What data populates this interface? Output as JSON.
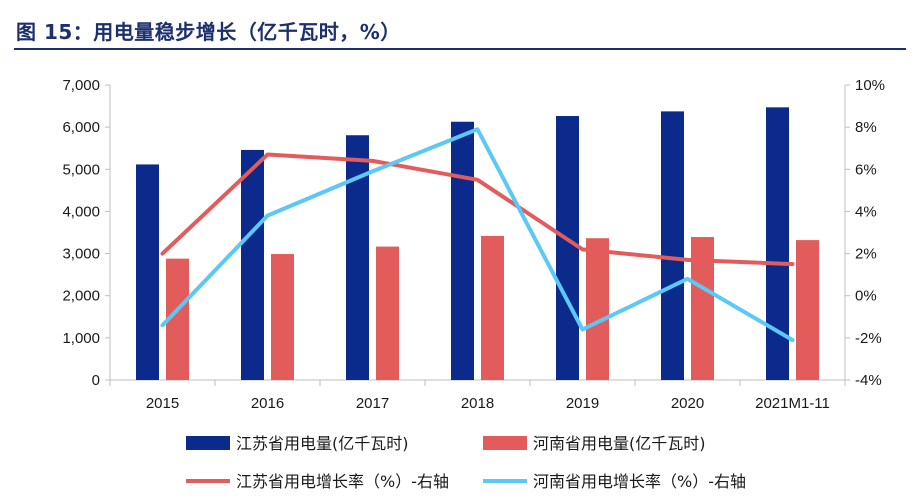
{
  "title": "图 15：用电量稳步增长（亿千瓦时，%）",
  "chart_data": {
    "type": "bar",
    "categories": [
      "2015",
      "2016",
      "2017",
      "2018",
      "2019",
      "2020",
      "2021M1-11"
    ],
    "ylim": [
      0,
      7000
    ],
    "y_ticks": [
      "0",
      "1,000",
      "2,000",
      "3,000",
      "4,000",
      "5,000",
      "6,000",
      "7,000"
    ],
    "y2lim": [
      -4,
      10
    ],
    "y2_ticks": [
      "-4%",
      "-2%",
      "0%",
      "2%",
      "4%",
      "6%",
      "8%",
      "10%"
    ],
    "series": [
      {
        "name": "江苏省用电量(亿千瓦时)",
        "kind": "bar",
        "axis": "left",
        "color": "#0b2a8c",
        "values": [
          5115,
          5459,
          5808,
          6128,
          6264,
          6374,
          6470
        ]
      },
      {
        "name": "河南省用电量(亿千瓦时)",
        "kind": "bar",
        "axis": "left",
        "color": "#e35c5c",
        "values": [
          2880,
          2989,
          3166,
          3418,
          3364,
          3392,
          3320
        ]
      },
      {
        "name": "江苏省用电增长率（%）-右轴",
        "kind": "line",
        "axis": "right",
        "color": "#e35c5c",
        "values": [
          2.0,
          6.7,
          6.4,
          5.5,
          2.2,
          1.7,
          1.5
        ]
      },
      {
        "name": "河南省用电增长率（%）-右轴",
        "kind": "line",
        "axis": "right",
        "color": "#5bc8f5",
        "values": [
          -1.4,
          3.8,
          5.9,
          7.9,
          -1.6,
          0.8,
          -2.1
        ]
      }
    ],
    "legend_position": "bottom"
  }
}
